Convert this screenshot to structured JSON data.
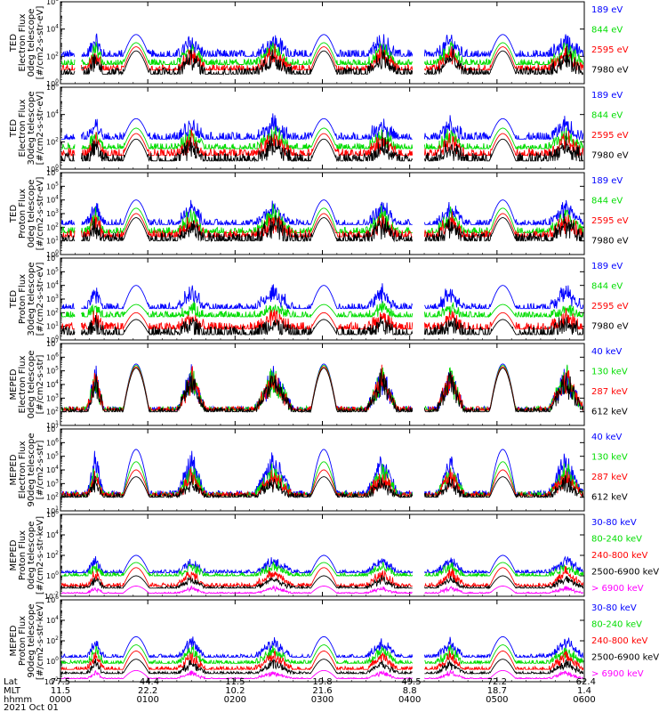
{
  "colors": {
    "blue": "#0000ff",
    "red": "#ff0000",
    "green": "#00dd00",
    "black": "#000000",
    "magenta": "#ff00ff"
  },
  "chart_data": [
    {
      "type": "line",
      "ylabel": [
        "TED",
        "Electron Flux",
        "0deg telescope",
        "[#/cm2-s-str-eV]"
      ],
      "yscale": "log",
      "ylim_exp": [
        0,
        6
      ],
      "ytick_exps": [
        0,
        2,
        4,
        6
      ],
      "series": [
        {
          "name": "7980 eV",
          "color": "#000000",
          "baseline": 0.7,
          "peak": 2.4,
          "noise": 0.5
        },
        {
          "name": "2595 eV",
          "color": "#ff0000",
          "baseline": 1.0,
          "peak": 2.7,
          "noise": 0.4
        },
        {
          "name": "844 eV",
          "color": "#00dd00",
          "baseline": 1.4,
          "peak": 3.0,
          "noise": 0.4
        },
        {
          "name": "189 eV",
          "color": "#0000ff",
          "baseline": 2.0,
          "peak": 3.6,
          "noise": 0.5
        }
      ]
    },
    {
      "type": "line",
      "ylabel": [
        "TED",
        "Electron Flux",
        "30deg telescope",
        "[#/cm2-s-str-eV]"
      ],
      "yscale": "log",
      "ylim_exp": [
        0,
        6
      ],
      "ytick_exps": [
        0,
        2,
        4,
        6
      ],
      "series": [
        {
          "name": "7980 eV",
          "color": "#000000",
          "baseline": 0.6,
          "peak": 2.2,
          "noise": 0.6
        },
        {
          "name": "2595 eV",
          "color": "#ff0000",
          "baseline": 1.0,
          "peak": 2.6,
          "noise": 0.5
        },
        {
          "name": "844 eV",
          "color": "#00dd00",
          "baseline": 1.5,
          "peak": 3.0,
          "noise": 0.4
        },
        {
          "name": "189 eV",
          "color": "#0000ff",
          "baseline": 2.2,
          "peak": 3.7,
          "noise": 0.5
        }
      ]
    },
    {
      "type": "line",
      "ylabel": [
        "TED",
        "Proton Flux",
        "0deg telescope",
        "[#/cm2-s-str-eV]"
      ],
      "yscale": "log",
      "ylim_exp": [
        0,
        6
      ],
      "ytick_exps": [
        0,
        1,
        2,
        3,
        4,
        5,
        6
      ],
      "series": [
        {
          "name": "7980 eV",
          "color": "#000000",
          "baseline": 1.0,
          "peak": 2.7,
          "noise": 0.6
        },
        {
          "name": "2595 eV",
          "color": "#ff0000",
          "baseline": 1.3,
          "peak": 3.0,
          "noise": 0.5
        },
        {
          "name": "844 eV",
          "color": "#00dd00",
          "baseline": 1.6,
          "peak": 3.4,
          "noise": 0.4
        },
        {
          "name": "189 eV",
          "color": "#0000ff",
          "baseline": 2.2,
          "peak": 4.0,
          "noise": 0.4
        }
      ]
    },
    {
      "type": "line",
      "ylabel": [
        "TED",
        "Proton Flux",
        "30deg telescope",
        "[#/cm2-s-str-eV]"
      ],
      "yscale": "log",
      "ylim_exp": [
        0,
        6
      ],
      "ytick_exps": [
        0,
        1,
        2,
        3,
        4,
        5,
        6
      ],
      "series": [
        {
          "name": "7980 eV",
          "color": "#000000",
          "baseline": 0.4,
          "peak": 1.5,
          "noise": 0.6
        },
        {
          "name": "2595 eV",
          "color": "#ff0000",
          "baseline": 0.8,
          "peak": 2.0,
          "noise": 0.5
        },
        {
          "name": "844 eV",
          "color": "#00dd00",
          "baseline": 1.7,
          "peak": 2.6,
          "noise": 0.4
        },
        {
          "name": "189 eV",
          "color": "#0000ff",
          "baseline": 2.3,
          "peak": 4.0,
          "noise": 0.4
        }
      ]
    },
    {
      "type": "line",
      "ylabel": [
        "MEPED",
        "Electron Flux",
        "0deg telescope",
        "[#/cm2-s-str]"
      ],
      "yscale": "log",
      "ylim_exp": [
        1,
        7
      ],
      "ytick_exps": [
        1,
        2,
        3,
        4,
        5,
        6,
        7
      ],
      "series": [
        {
          "name": "612 keV",
          "color": "#000000",
          "baseline": 2.0,
          "peak": 5.2,
          "noise": 0.3
        },
        {
          "name": "287 keV",
          "color": "#ff0000",
          "baseline": 2.1,
          "peak": 5.3,
          "noise": 0.3
        },
        {
          "name": "130 keV",
          "color": "#00dd00",
          "baseline": 2.1,
          "peak": 5.4,
          "noise": 0.3
        },
        {
          "name": "40 keV",
          "color": "#0000ff",
          "baseline": 2.1,
          "peak": 5.5,
          "noise": 0.3
        }
      ]
    },
    {
      "type": "line",
      "ylabel": [
        "MEPED",
        "Electron Flux",
        "90deg telescope",
        "[#/cm2-s-str]"
      ],
      "yscale": "log",
      "ylim_exp": [
        1,
        7
      ],
      "ytick_exps": [
        1,
        2,
        3,
        4,
        5,
        6,
        7
      ],
      "series": [
        {
          "name": "612 keV",
          "color": "#000000",
          "baseline": 2.0,
          "peak": 3.5,
          "noise": 0.3
        },
        {
          "name": "287 keV",
          "color": "#ff0000",
          "baseline": 2.1,
          "peak": 4.0,
          "noise": 0.3
        },
        {
          "name": "130 keV",
          "color": "#00dd00",
          "baseline": 2.1,
          "peak": 4.6,
          "noise": 0.3
        },
        {
          "name": "40 keV",
          "color": "#0000ff",
          "baseline": 2.2,
          "peak": 5.5,
          "noise": 0.3
        }
      ]
    },
    {
      "type": "line",
      "ylabel": [
        "MEPED",
        "Proton Flux",
        "0deg telescope",
        "[#/cm2-s-str-keV]"
      ],
      "yscale": "log",
      "ylim_exp": [
        -2,
        6
      ],
      "ytick_exps": [
        -2,
        0,
        2,
        4,
        6
      ],
      "series": [
        {
          "name": "> 6900 keV",
          "color": "#ff00ff",
          "baseline": -1.7,
          "peak": -1.0,
          "noise": 0.1
        },
        {
          "name": "2500-6900 keV",
          "color": "#000000",
          "baseline": -1.2,
          "peak": 0.0,
          "noise": 0.2
        },
        {
          "name": "240-800 keV",
          "color": "#ff0000",
          "baseline": -1.0,
          "peak": 0.8,
          "noise": 0.3
        },
        {
          "name": "80-240 keV",
          "color": "#00dd00",
          "baseline": 0.0,
          "peak": 1.3,
          "noise": 0.3
        },
        {
          "name": "30-80 keV",
          "color": "#0000ff",
          "baseline": 0.3,
          "peak": 2.0,
          "noise": 0.3
        }
      ]
    },
    {
      "type": "line",
      "ylabel": [
        "MEPED",
        "Proton Flux",
        "90deg telescope",
        "[#/cm2-s-str-keV]"
      ],
      "yscale": "log",
      "ylim_exp": [
        -2,
        6
      ],
      "ytick_exps": [
        -2,
        0,
        2,
        4,
        6
      ],
      "series": [
        {
          "name": "> 6900 keV",
          "color": "#ff00ff",
          "baseline": -1.7,
          "peak": -0.9,
          "noise": 0.1
        },
        {
          "name": "2500-6900 keV",
          "color": "#000000",
          "baseline": -1.2,
          "peak": 0.2,
          "noise": 0.2
        },
        {
          "name": "240-800 keV",
          "color": "#ff0000",
          "baseline": -0.8,
          "peak": 1.0,
          "noise": 0.3
        },
        {
          "name": "80-240 keV",
          "color": "#00dd00",
          "baseline": -0.2,
          "peak": 1.6,
          "noise": 0.3
        },
        {
          "name": "30-80 keV",
          "color": "#0000ff",
          "baseline": 0.4,
          "peak": 2.4,
          "noise": 0.3
        }
      ]
    }
  ],
  "time_axis": {
    "minutes_range": [
      0,
      360
    ],
    "passes_minutes": [
      52,
      181,
      304
    ],
    "high_lat_regions_minutes": [
      [
        18,
        30
      ],
      [
        80,
        100
      ],
      [
        133,
        160
      ],
      [
        210,
        232
      ],
      [
        258,
        278
      ],
      [
        335,
        360
      ]
    ],
    "footer_labels": [
      "Lat",
      "MLT",
      "hhmm",
      "2021 Oct 01"
    ],
    "ticks": [
      {
        "minute": 0,
        "lat": "77.5",
        "mlt": "11.5",
        "hhmm": "0000"
      },
      {
        "minute": 60,
        "lat": "-44.4",
        "mlt": "22.2",
        "hhmm": "0100"
      },
      {
        "minute": 120,
        "lat": "11.5",
        "mlt": "10.2",
        "hhmm": "0200"
      },
      {
        "minute": 180,
        "lat": "19.8",
        "mlt": "21.6",
        "hhmm": "0300"
      },
      {
        "minute": 240,
        "lat": "-49.5",
        "mlt": "8.8",
        "hhmm": "0400"
      },
      {
        "minute": 300,
        "lat": "72.2",
        "mlt": "18.7",
        "hhmm": "0500"
      },
      {
        "minute": 360,
        "lat": "-62.4",
        "mlt": "1.4",
        "hhmm": "0600"
      }
    ]
  }
}
